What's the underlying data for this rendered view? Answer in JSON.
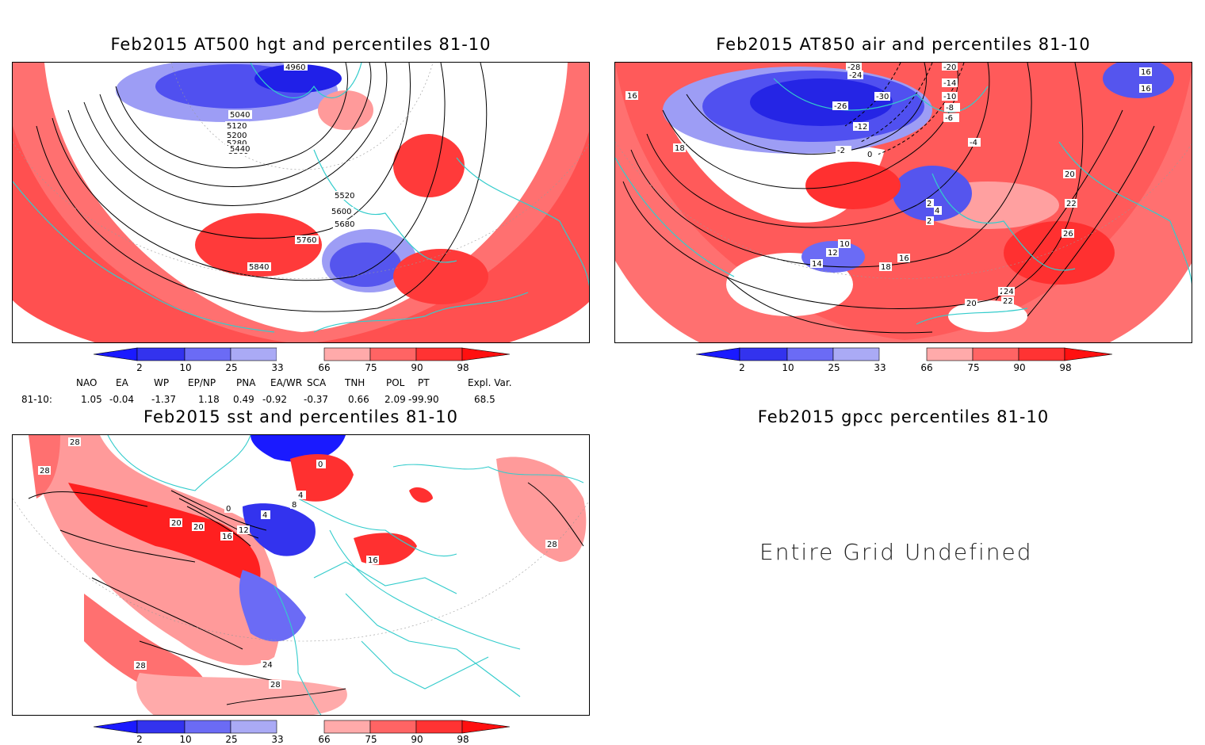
{
  "panels": {
    "hgt500": {
      "title": "Feb2015 AT500 hgt and percentiles 81-10",
      "contour_labels": [
        "5040",
        "5120",
        "5200",
        "5280",
        "5360",
        "5440",
        "5520",
        "5600",
        "5680",
        "5760",
        "5840",
        "4960"
      ]
    },
    "air850": {
      "title": "Feb2015 AT850 air and percentiles 81-10",
      "contour_labels": [
        "-24",
        "-28",
        "-26",
        "-30",
        "-20",
        "-14",
        "-10",
        "-8",
        "-6",
        "-12",
        "-2",
        "0",
        "-4",
        "16",
        "18",
        "20",
        "22",
        "26",
        "24",
        "10",
        "12",
        "14",
        "16",
        "18",
        "20",
        "22",
        "24",
        "16",
        "16",
        "2",
        "4",
        "2"
      ]
    },
    "sst": {
      "title": "Feb2015 sst and percentiles 81-10",
      "contour_labels": [
        "28",
        "28",
        "20",
        "0",
        "0",
        "4",
        "8",
        "12",
        "16",
        "20",
        "4",
        "28",
        "24",
        "28",
        "16",
        "28"
      ]
    },
    "gpcc": {
      "title": "Feb2015 gpcc percentiles 81-10",
      "message": "Entire Grid Undefined"
    }
  },
  "colorbar": {
    "labels": [
      "2",
      "10",
      "25",
      "33",
      "66",
      "75",
      "90",
      "98"
    ],
    "colors": {
      "below2": "#1a1aff",
      "p2_10": "#3333ee",
      "p10_25": "#6b6bf5",
      "p25_33": "#aaaaf5",
      "p33_66": "#ffffff",
      "p66_75": "#ffaaaa",
      "p75_90": "#ff6464",
      "p90_98": "#ff3333",
      "above98": "#ff1010"
    }
  },
  "indices": {
    "headers": [
      "NAO",
      "EA",
      "WP",
      "EP/NP",
      "PNA",
      "EA/WR",
      "SCA",
      "TNH",
      "POL",
      "PT",
      "Expl. Var."
    ],
    "row_label": "81-10:",
    "values": [
      "1.05",
      "-0.04",
      "-1.37",
      "1.18",
      "0.49",
      "-0.92",
      "-0.37",
      "0.66",
      "2.09",
      "-99.90",
      "68.5"
    ]
  },
  "map_colors": {
    "coast": "#33cccc",
    "contour": "#000000",
    "grid": "#999999"
  }
}
